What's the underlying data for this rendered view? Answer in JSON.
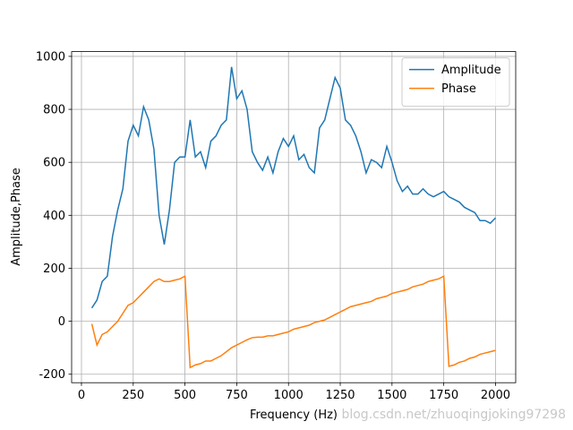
{
  "chart_data": {
    "type": "line",
    "xlabel": "Frequency (Hz)",
    "ylabel": "Amplitude,Phase",
    "watermark": "blog.csdn.net/zhuoqingjoking97298",
    "x": [
      50,
      75,
      100,
      125,
      150,
      175,
      200,
      225,
      250,
      275,
      300,
      325,
      350,
      375,
      400,
      425,
      450,
      475,
      500,
      525,
      550,
      575,
      600,
      625,
      650,
      675,
      700,
      725,
      750,
      775,
      800,
      825,
      850,
      875,
      900,
      925,
      950,
      975,
      1000,
      1025,
      1050,
      1075,
      1100,
      1125,
      1150,
      1175,
      1200,
      1225,
      1250,
      1275,
      1300,
      1325,
      1350,
      1375,
      1400,
      1425,
      1450,
      1475,
      1500,
      1525,
      1550,
      1575,
      1600,
      1625,
      1650,
      1675,
      1700,
      1725,
      1750,
      1775,
      1800,
      1825,
      1850,
      1875,
      1900,
      1925,
      1950,
      1975,
      2000
    ],
    "series": [
      {
        "name": "Amplitude",
        "color": "#1f77b4",
        "values": [
          50,
          80,
          150,
          170,
          320,
          420,
          500,
          680,
          740,
          700,
          810,
          760,
          650,
          400,
          290,
          420,
          600,
          620,
          620,
          760,
          620,
          640,
          580,
          680,
          700,
          740,
          760,
          960,
          840,
          870,
          800,
          640,
          600,
          570,
          620,
          560,
          640,
          690,
          660,
          700,
          610,
          630,
          580,
          560,
          730,
          760,
          840,
          920,
          880,
          760,
          740,
          700,
          640,
          560,
          610,
          600,
          580,
          660,
          600,
          530,
          490,
          510,
          480,
          480,
          500,
          480,
          470,
          480,
          490,
          470,
          460,
          450,
          430,
          420,
          410,
          380,
          380,
          370,
          390
        ]
      },
      {
        "name": "Phase",
        "color": "#ff7f0e",
        "values": [
          -10,
          -90,
          -50,
          -40,
          -20,
          0,
          30,
          60,
          70,
          90,
          110,
          130,
          150,
          160,
          150,
          150,
          155,
          160,
          170,
          -175,
          -165,
          -160,
          -150,
          -150,
          -140,
          -130,
          -115,
          -100,
          -90,
          -80,
          -70,
          -62,
          -60,
          -60,
          -55,
          -55,
          -50,
          -45,
          -40,
          -30,
          -25,
          -20,
          -15,
          -5,
          0,
          5,
          15,
          25,
          35,
          45,
          55,
          60,
          65,
          70,
          75,
          85,
          90,
          95,
          105,
          110,
          115,
          120,
          130,
          135,
          140,
          150,
          155,
          160,
          170,
          -170,
          -165,
          -155,
          -150,
          -140,
          -135,
          -125,
          -120,
          -115,
          -110
        ]
      }
    ],
    "xlim": [
      -47.5,
      2097.5
    ],
    "ylim": [
      -232,
      1018
    ],
    "xticks": [
      0,
      250,
      500,
      750,
      1000,
      1250,
      1500,
      1750,
      2000
    ],
    "yticks": [
      -200,
      0,
      200,
      400,
      600,
      800,
      1000
    ],
    "grid": true,
    "legend": "upper right"
  }
}
